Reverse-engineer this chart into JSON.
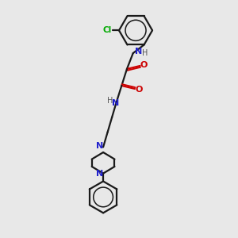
{
  "bg_color": "#e8e8e8",
  "bond_color": "#1a1a1a",
  "N_color": "#2222cc",
  "O_color": "#cc0000",
  "Cl_color": "#00aa00",
  "H_color": "#555555",
  "lw": 1.6,
  "xlim": [
    3.0,
    9.5
  ],
  "ylim": [
    0.0,
    13.5
  ]
}
